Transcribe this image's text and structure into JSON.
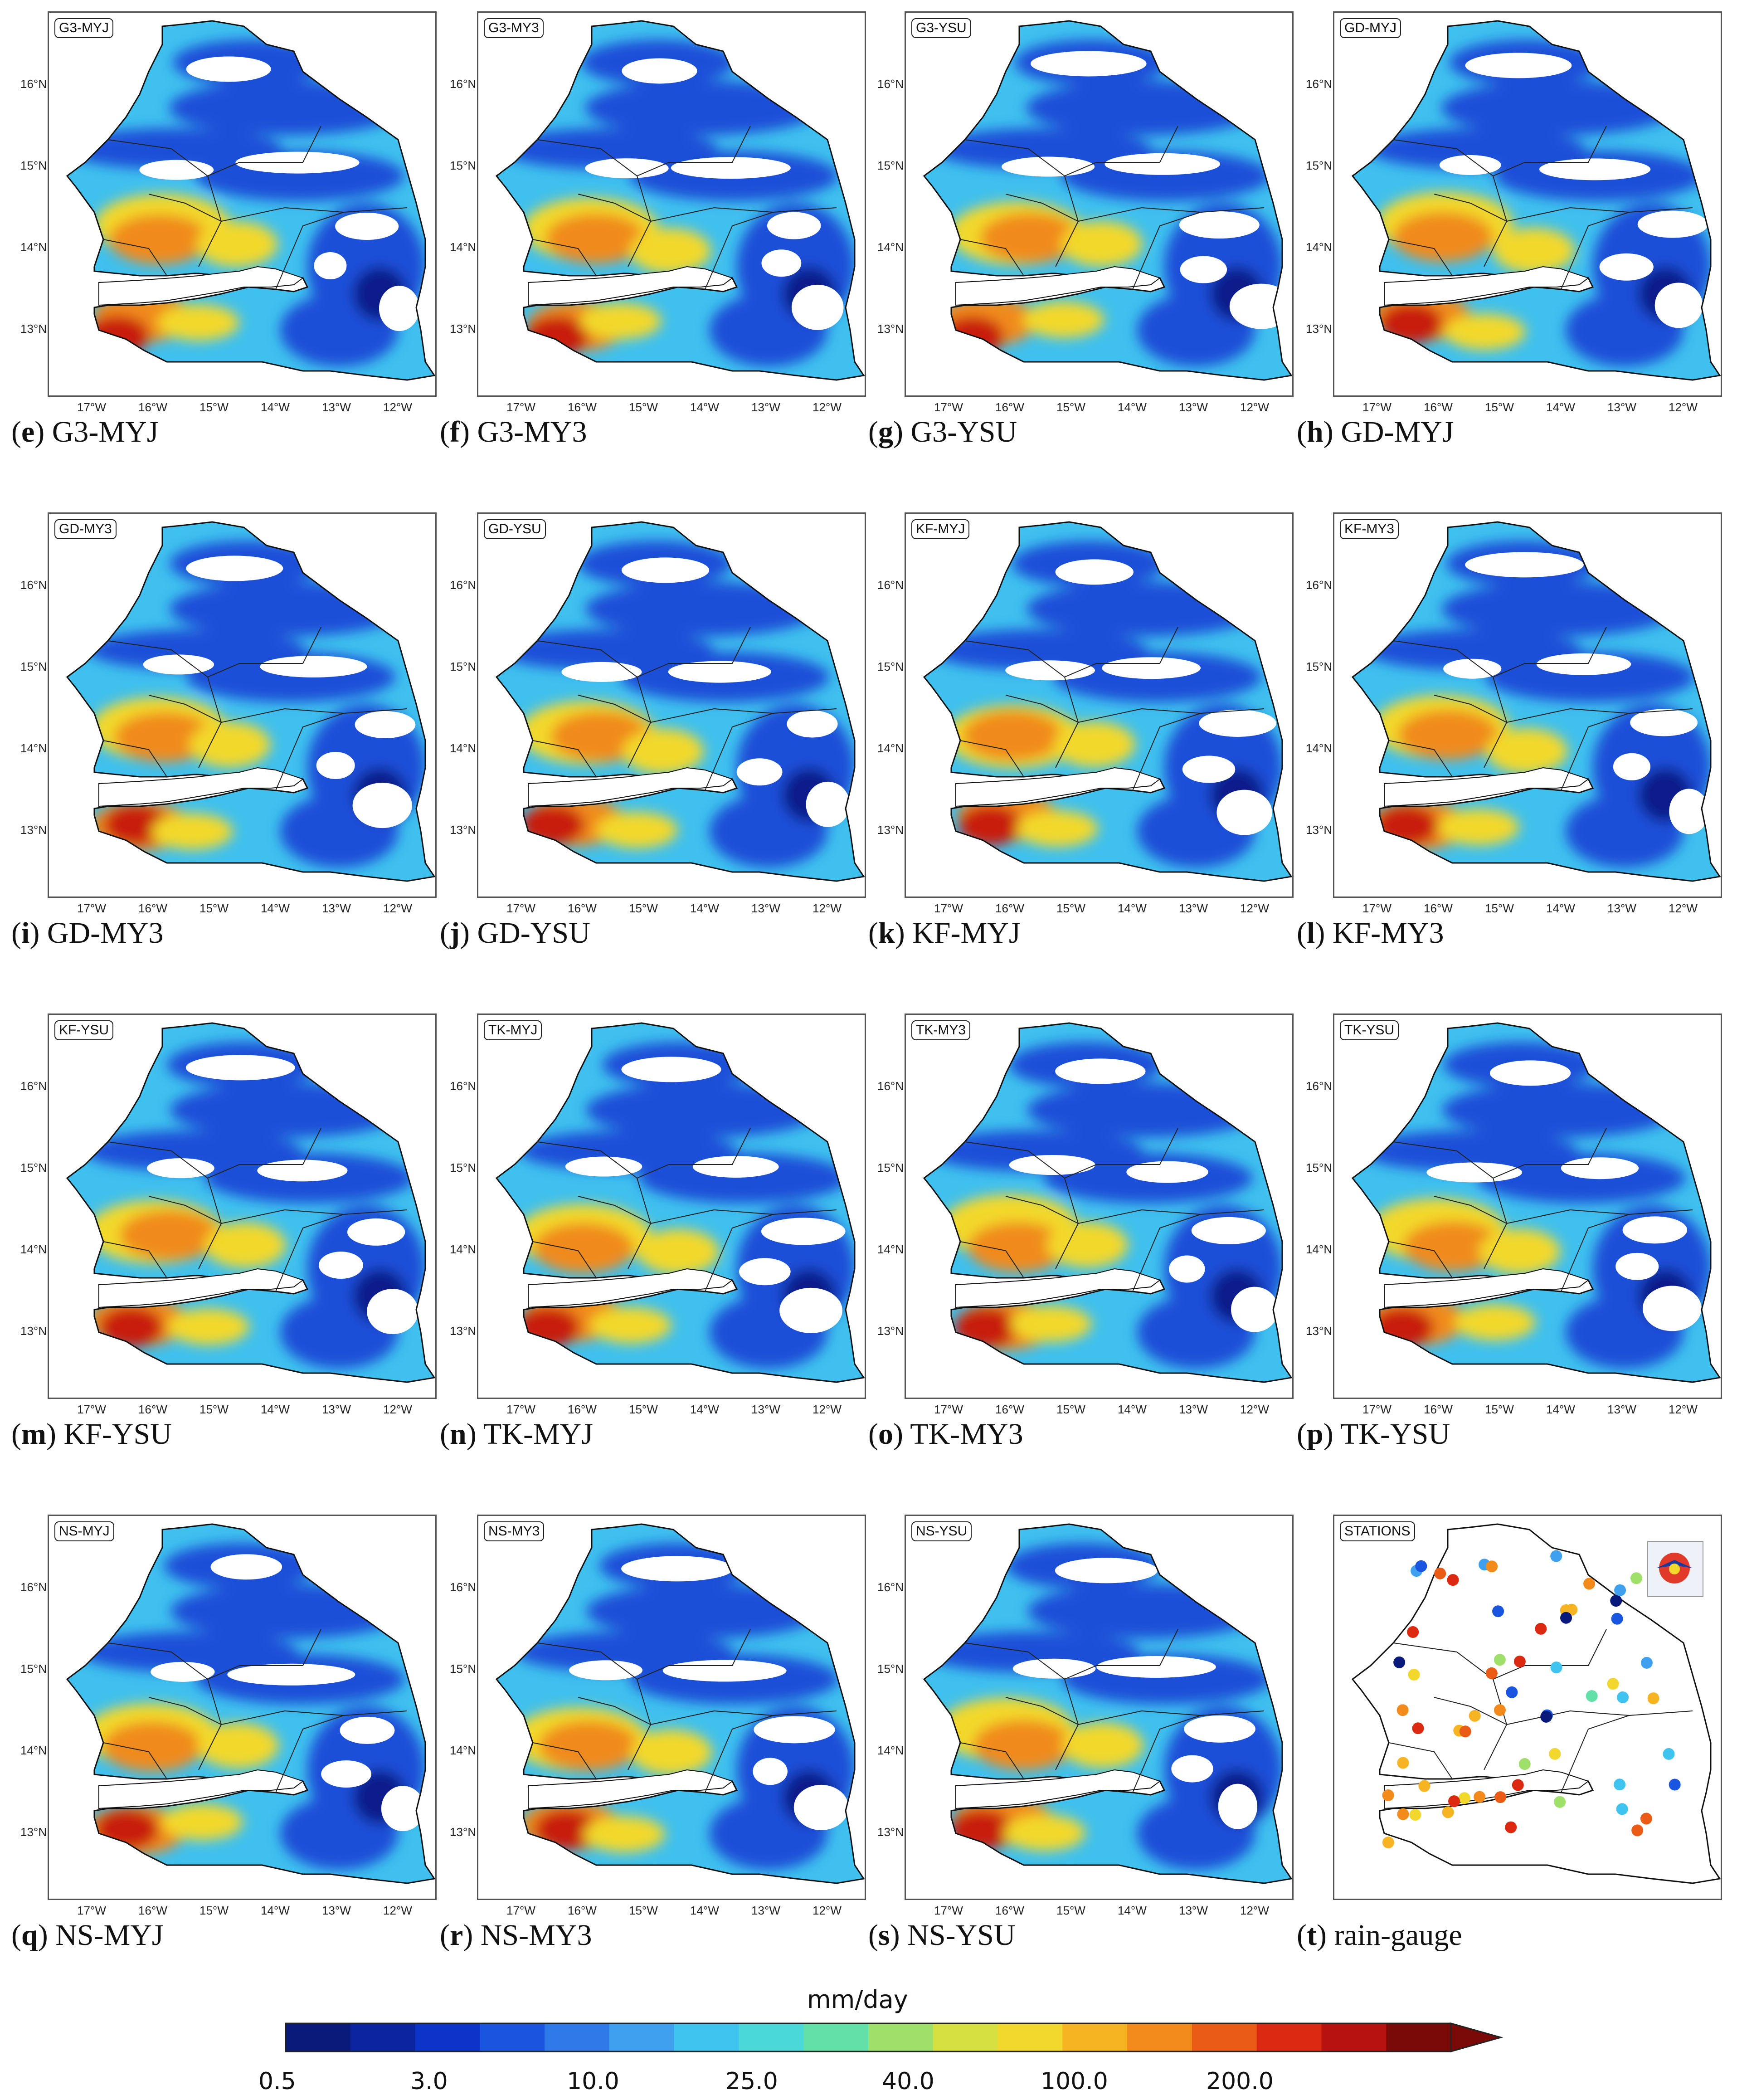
{
  "panels": [
    {
      "tag": "G3-MYJ",
      "letter": "e",
      "name": "G3-MYJ"
    },
    {
      "tag": "G3-MY3",
      "letter": "f",
      "name": "G3-MY3"
    },
    {
      "tag": "G3-YSU",
      "letter": "g",
      "name": "G3-YSU"
    },
    {
      "tag": "GD-MYJ",
      "letter": "h",
      "name": "GD-MYJ"
    },
    {
      "tag": "GD-MY3",
      "letter": "i",
      "name": "GD-MY3"
    },
    {
      "tag": "GD-YSU",
      "letter": "j",
      "name": "GD-YSU"
    },
    {
      "tag": "KF-MYJ",
      "letter": "k",
      "name": "KF-MYJ"
    },
    {
      "tag": "KF-MY3",
      "letter": "l",
      "name": "KF-MY3"
    },
    {
      "tag": "KF-YSU",
      "letter": "m",
      "name": "KF-YSU"
    },
    {
      "tag": "TK-MYJ",
      "letter": "n",
      "name": "TK-MYJ"
    },
    {
      "tag": "TK-MY3",
      "letter": "o",
      "name": "TK-MY3"
    },
    {
      "tag": "TK-YSU",
      "letter": "p",
      "name": "TK-YSU"
    },
    {
      "tag": "NS-MYJ",
      "letter": "q",
      "name": "NS-MYJ"
    },
    {
      "tag": "NS-MY3",
      "letter": "r",
      "name": "NS-MY3"
    },
    {
      "tag": "NS-YSU",
      "letter": "s",
      "name": "NS-YSU"
    },
    {
      "tag": "STATIONS",
      "letter": "t",
      "name": "rain-gauge"
    }
  ],
  "lat_labels": [
    "16°N",
    "15°N",
    "14°N",
    "13°N"
  ],
  "lon_labels": [
    "17°W",
    "16°W",
    "15°W",
    "14°W",
    "13°W",
    "12°W"
  ],
  "colorbar": {
    "title": "mm/day",
    "tick_labels": [
      "0.5",
      "3.0",
      "10.0",
      "25.0",
      "40.0",
      "100.0",
      "200.0"
    ],
    "colors": [
      "#0a1a7a",
      "#0b24a0",
      "#0d34c8",
      "#1a55e0",
      "#2f7ae8",
      "#3fa0ef",
      "#3fc3ef",
      "#4ad8d8",
      "#62e0a8",
      "#9ee06a",
      "#d6e040",
      "#f2d82c",
      "#f6b422",
      "#f28a1c",
      "#ea5c16",
      "#dc2a12",
      "#b81210",
      "#7a0a08"
    ]
  },
  "map_colors": {
    "blue": "#1f4fd8",
    "cyan": "#3fc0ee",
    "yellow": "#f2d82c",
    "orange": "#f08a1c",
    "red": "#c81a10",
    "darkblue": "#0a1a8a"
  },
  "stations": {
    "colors": [
      "#0a1a7a",
      "#1a55e0",
      "#3fa0ef",
      "#3fc3ef",
      "#62e0a8",
      "#9ee06a",
      "#f2d82c",
      "#f6b422",
      "#f28a1c",
      "#ea5c16",
      "#dc2a12"
    ]
  }
}
